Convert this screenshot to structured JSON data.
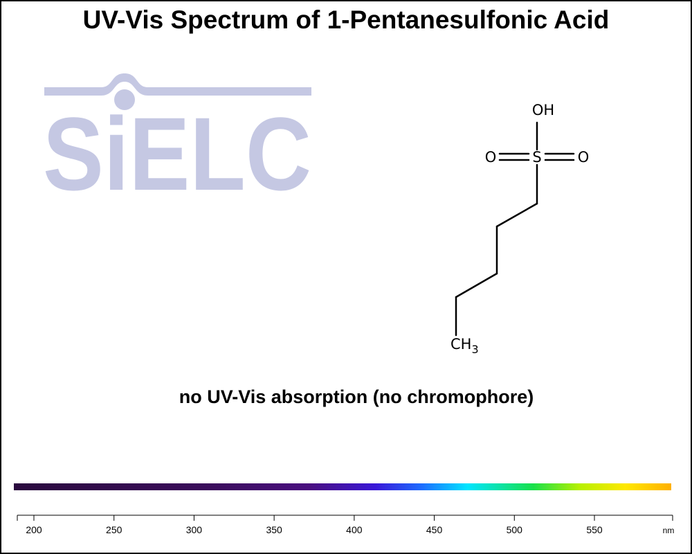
{
  "title": "UV-Vis Spectrum of 1-Pentanesulfonic Acid",
  "logo_text": "SiELC",
  "note": "no UV-Vis absorption (no chromophore)",
  "structure_labels": {
    "oh": "OH",
    "o_left": "O",
    "s": "S",
    "o_right": "O",
    "ch": "CH",
    "sub3": "3"
  },
  "chart_data": {
    "type": "line",
    "title": "UV-Vis Spectrum of 1-Pentanesulfonic Acid",
    "xlabel": "nm",
    "ylabel": "",
    "xlim": [
      190,
      600
    ],
    "x_ticks": [
      200,
      250,
      300,
      350,
      400,
      450,
      500,
      550
    ],
    "series": [],
    "annotation": "no UV-Vis absorption (no chromophore)",
    "spectrum_bar": true
  },
  "colors": {
    "logo": "#c5c8e3",
    "spectrum": [
      "#2a0a3e",
      "#3b0d5c",
      "#4a0f80",
      "#3a18d8",
      "#1e6cff",
      "#00e5ff",
      "#18e04a",
      "#b6f000",
      "#ffe800",
      "#ffb000"
    ]
  }
}
